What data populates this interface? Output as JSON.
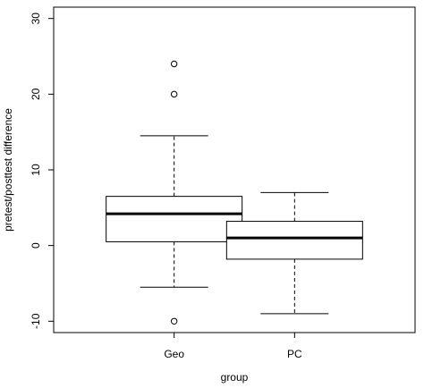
{
  "chart_data": {
    "type": "boxplot",
    "xlabel": "group",
    "ylabel": "pretest/posttest difference",
    "categories": [
      "Geo",
      "PC"
    ],
    "ylim": [
      -11.5,
      31.5
    ],
    "yticks": [
      -10,
      0,
      10,
      20,
      30
    ],
    "yticklabels": [
      "-10",
      "0",
      "10",
      "20",
      "30"
    ],
    "grid": false,
    "boxes": [
      {
        "category": "Geo",
        "whisker_low": -5.5,
        "q1": 0.5,
        "median": 4.2,
        "q3": 6.5,
        "whisker_high": 14.5,
        "outliers": [
          24,
          20,
          -10
        ]
      },
      {
        "category": "PC",
        "whisker_low": -9,
        "q1": -1.8,
        "median": 1.0,
        "q3": 3.2,
        "whisker_high": 7,
        "outliers": []
      }
    ],
    "colors": {
      "box_fill": "#ffffff",
      "stroke": "#000000"
    }
  }
}
